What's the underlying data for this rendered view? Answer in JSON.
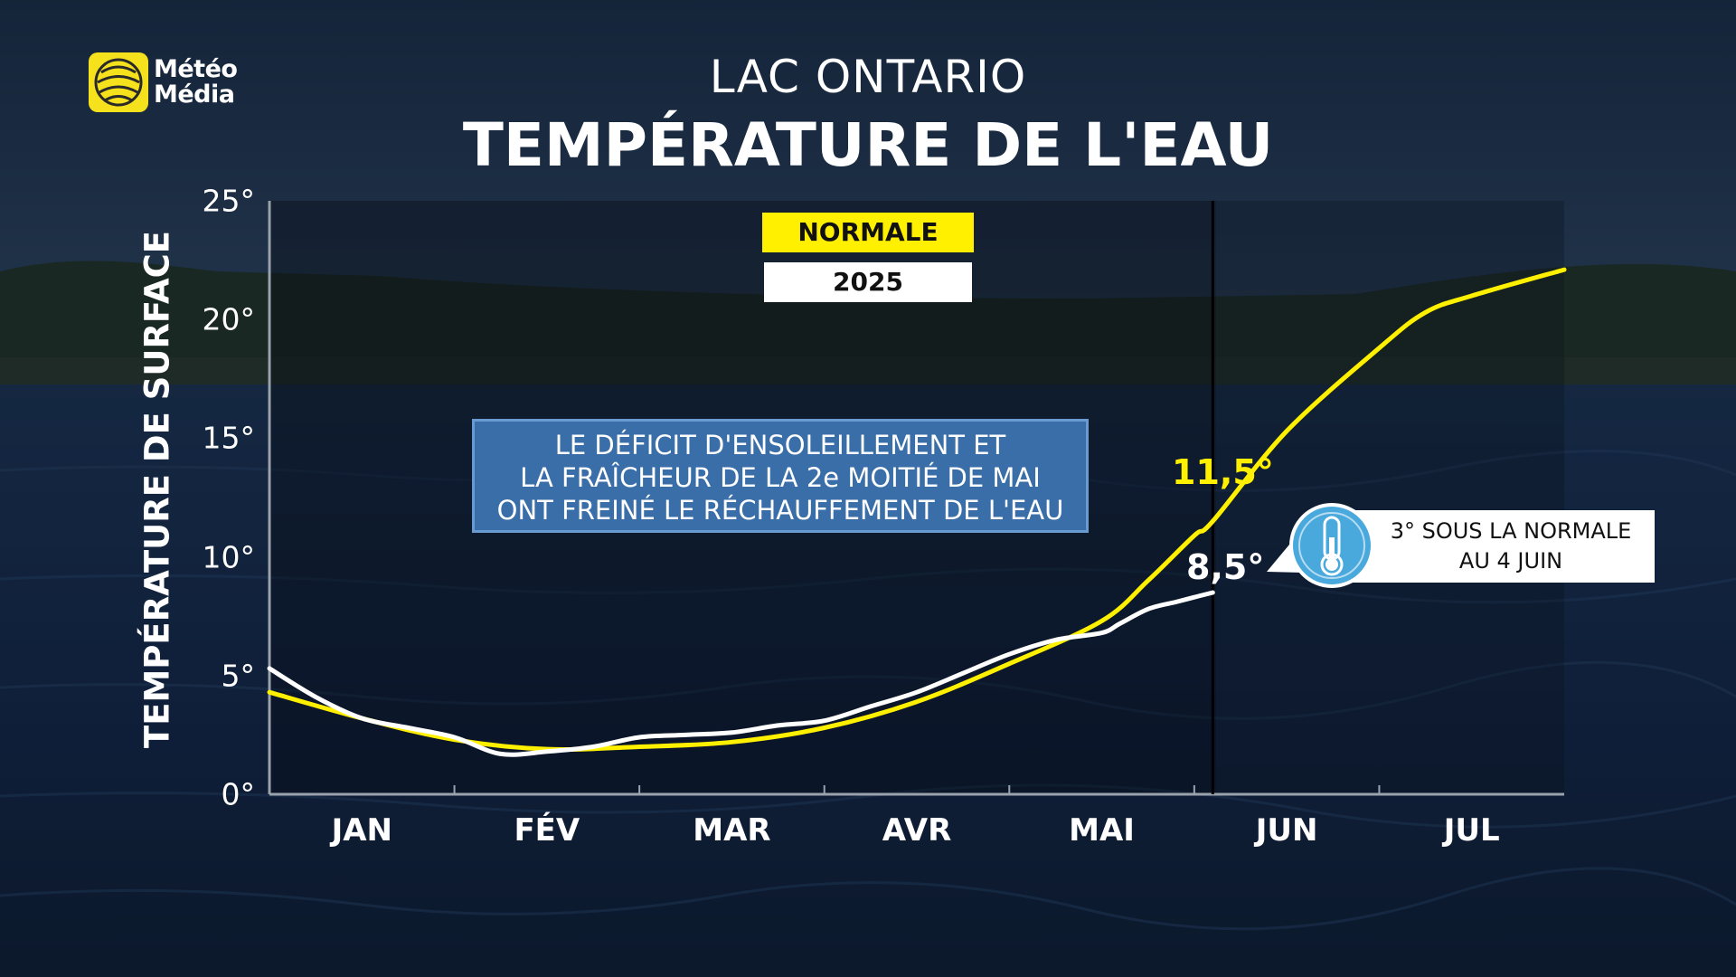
{
  "logo": {
    "line1": "Météo",
    "line2": "Média",
    "color": "#f5e21c"
  },
  "title": {
    "location": "LAC ONTARIO",
    "main": "TEMPÉRATURE DE L'EAU"
  },
  "legend": {
    "normal_label": "NORMALE",
    "year_label": "2025",
    "normal_color": "#fff000",
    "year_color": "#ffffff"
  },
  "note": {
    "lines": [
      "LE DÉFICIT D'ENSOLEILLEMENT ET",
      "LA FRAÎCHEUR DE LA 2e MOITIÉ DE MAI",
      "ONT FREINÉ LE RÉCHAUFFEMENT DE L'EAU"
    ]
  },
  "labels": {
    "normal_value": "11,5°",
    "year_value": "8,5°"
  },
  "callout": {
    "line1": "3° SOUS LA NORMALE",
    "line2": "AU 4 JUIN",
    "icon": "thermometer-icon"
  },
  "chart_data": {
    "type": "line",
    "title": "TEMPÉRATURE DE L'EAU",
    "ylabel": "TEMPÉRATURE DE SURFACE",
    "xlabel": "",
    "x_unit": "months from January 1",
    "xlim": [
      0,
      7
    ],
    "ylim": [
      0,
      25
    ],
    "yticks": [
      0,
      5,
      10,
      15,
      20,
      25
    ],
    "ytick_labels": [
      "0°",
      "5°",
      "10°",
      "15°",
      "20°",
      "25°"
    ],
    "categories": [
      "JAN",
      "FÉV",
      "MAR",
      "AVR",
      "MAI",
      "JUN",
      "JUL"
    ],
    "current_date_marker": 5.1,
    "series": [
      {
        "name": "NORMALE",
        "color": "#fff000",
        "x": [
          0,
          0.5,
          1,
          1.5,
          2,
          2.5,
          3,
          3.5,
          4,
          4.5,
          4.75,
          5,
          5.1,
          5.5,
          6,
          6.25,
          6.5,
          7
        ],
        "y": [
          4.3,
          3.2,
          2.3,
          1.9,
          2.0,
          2.2,
          2.8,
          3.9,
          5.5,
          7.3,
          9.0,
          10.9,
          11.5,
          15.3,
          18.8,
          20.3,
          21.0,
          22.1
        ]
      },
      {
        "name": "2025",
        "color": "#ffffff",
        "x": [
          0,
          0.25,
          0.5,
          0.75,
          1,
          1.25,
          1.5,
          1.75,
          2,
          2.25,
          2.5,
          2.75,
          3,
          3.25,
          3.5,
          3.75,
          4,
          4.25,
          4.5,
          4.6,
          4.75,
          4.9,
          5.0,
          5.1
        ],
        "y": [
          5.3,
          4.1,
          3.2,
          2.8,
          2.4,
          1.7,
          1.8,
          2.0,
          2.4,
          2.5,
          2.6,
          2.9,
          3.1,
          3.7,
          4.3,
          5.1,
          5.9,
          6.5,
          6.8,
          7.2,
          7.8,
          8.1,
          8.3,
          8.5
        ]
      }
    ]
  }
}
